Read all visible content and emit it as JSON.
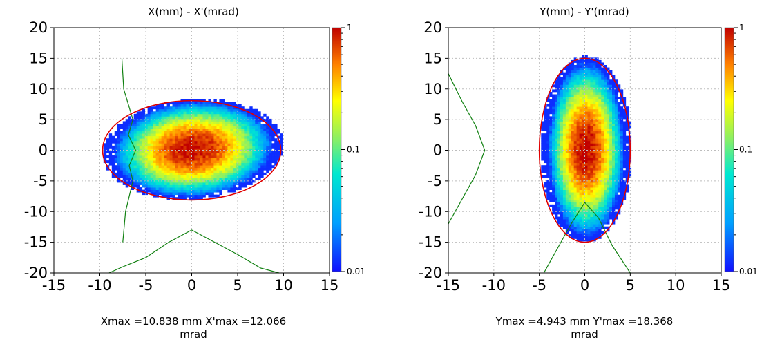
{
  "chart_data": [
    {
      "type": "heatmap",
      "title": "X(mm) - X'(mrad)",
      "footer_line1": "Xmax =10.838 mm  X'max =12.066",
      "footer_line2": "mrad",
      "xlim": [
        -15,
        15
      ],
      "ylim": [
        -20,
        20
      ],
      "x_ticks": [
        -15,
        -10,
        -5,
        0,
        5,
        10,
        15
      ],
      "y_ticks": [
        20,
        15,
        10,
        5,
        0,
        -5,
        -10,
        -15,
        -20
      ],
      "grid": true,
      "colorbar": {
        "min": 0.01,
        "max": 1,
        "scale": "log",
        "labels": [
          "1",
          "0.1",
          "0.01"
        ]
      },
      "density": {
        "center": [
          0,
          0
        ],
        "sigma": [
          2.9,
          2.6
        ],
        "tilt": 0.08
      },
      "ellipse": {
        "center": [
          0,
          0
        ],
        "semi_axes": [
          9.7,
          8.1
        ],
        "angle_deg": 0,
        "color": "#e00000"
      },
      "profile_left": [
        [
          -7.5,
          -15
        ],
        [
          -7.2,
          -10
        ],
        [
          -6.4,
          -5
        ],
        [
          -6.8,
          -2.5
        ],
        [
          -6.1,
          0
        ],
        [
          -6.9,
          2.5
        ],
        [
          -6.4,
          5
        ],
        [
          -7.4,
          10
        ],
        [
          -7.6,
          15
        ]
      ],
      "profile_bottom": [
        [
          -9,
          -20
        ],
        [
          -7.5,
          -19
        ],
        [
          -5,
          -17.5
        ],
        [
          -2.5,
          -15
        ],
        [
          0,
          -13
        ],
        [
          2.5,
          -15
        ],
        [
          5,
          -17
        ],
        [
          7.5,
          -19.2
        ],
        [
          9.5,
          -20
        ]
      ]
    },
    {
      "type": "heatmap",
      "title": "Y(mm) - Y'(mrad)",
      "footer_line1": "Ymax =4.943 mm  Y'max =18.368",
      "footer_line2": "mrad",
      "xlim": [
        -15,
        15
      ],
      "ylim": [
        -20,
        20
      ],
      "x_ticks": [
        -15,
        -10,
        -5,
        0,
        5,
        10,
        15
      ],
      "y_ticks": [
        20,
        15,
        10,
        5,
        0,
        -5,
        -10,
        -15,
        -20
      ],
      "grid": true,
      "colorbar": {
        "min": 0.01,
        "max": 1,
        "scale": "log",
        "labels": [
          "1",
          "0.1",
          "0.01"
        ]
      },
      "density": {
        "center": [
          0,
          0
        ],
        "sigma": [
          1.4,
          4.8
        ],
        "tilt": 0
      },
      "ellipse": {
        "center": [
          0,
          0
        ],
        "semi_axes": [
          5.0,
          15.0
        ],
        "angle_deg": 0,
        "color": "#e00000"
      },
      "profile_left": [
        [
          -15,
          -12
        ],
        [
          -13.5,
          -8
        ],
        [
          -12,
          -4
        ],
        [
          -11,
          0
        ],
        [
          -12,
          4
        ],
        [
          -13.5,
          8
        ],
        [
          -15,
          12.5
        ]
      ],
      "profile_bottom": [
        [
          -4.5,
          -20
        ],
        [
          -3,
          -16
        ],
        [
          -1.5,
          -12
        ],
        [
          0,
          -8.5
        ],
        [
          1.5,
          -11
        ],
        [
          3,
          -15.5
        ],
        [
          5,
          -20
        ]
      ]
    }
  ]
}
